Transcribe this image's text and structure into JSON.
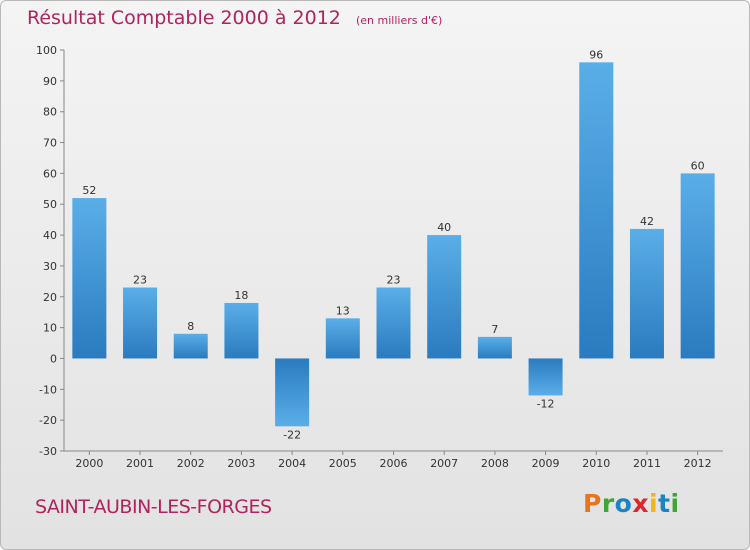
{
  "header": {
    "title": "Résultat Comptable 2000 à 2012",
    "unit": "(en milliers d'€)"
  },
  "commune": "SAINT-AUBIN-LES-FORGES",
  "logo": {
    "text": "Proxiti",
    "colors": [
      "#e8741e",
      "#3fa535",
      "#1c84c6",
      "#e2232a",
      "#f2b713",
      "#1c84c6",
      "#3fa535"
    ]
  },
  "colors": {
    "title": "#b0235f",
    "bar_light": "#5aaee8",
    "bar_dark": "#2a7bbf"
  },
  "chart_data": {
    "type": "bar",
    "title": "Résultat Comptable 2000 à 2012",
    "xlabel": "",
    "ylabel": "",
    "categories": [
      "2000",
      "2001",
      "2002",
      "2003",
      "2004",
      "2005",
      "2006",
      "2007",
      "2008",
      "2009",
      "2010",
      "2011",
      "2012"
    ],
    "values": [
      52,
      23,
      8,
      18,
      -22,
      13,
      23,
      40,
      7,
      -12,
      96,
      42,
      60
    ],
    "ylim": [
      -30,
      100
    ],
    "yticks": [
      -30,
      -20,
      -10,
      0,
      10,
      20,
      30,
      40,
      50,
      60,
      70,
      80,
      90,
      100
    ],
    "grid": false,
    "legend": "none"
  }
}
